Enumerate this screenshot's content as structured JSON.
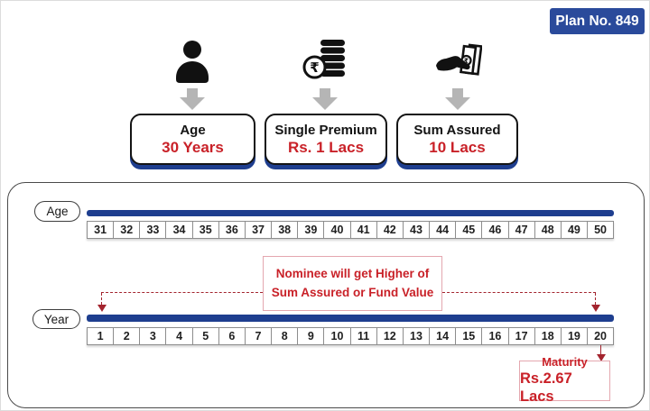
{
  "badge": {
    "label": "Plan No. 849"
  },
  "inputs": [
    {
      "icon": "person-icon",
      "title": "Age",
      "value": "30 Years"
    },
    {
      "icon": "rupee-coins-icon",
      "title": "Single Premium",
      "value": "Rs. 1 Lacs"
    },
    {
      "icon": "hand-cash-icon",
      "title": "Sum Assured",
      "value": "10 Lacs"
    }
  ],
  "timeline": {
    "age": {
      "label": "Age",
      "values": [
        "31",
        "32",
        "33",
        "34",
        "35",
        "36",
        "37",
        "38",
        "39",
        "40",
        "41",
        "42",
        "43",
        "44",
        "45",
        "46",
        "47",
        "48",
        "49",
        "50"
      ]
    },
    "year": {
      "label": "Year",
      "values": [
        "1",
        "2",
        "3",
        "4",
        "5",
        "6",
        "7",
        "8",
        "9",
        "10",
        "11",
        "12",
        "13",
        "14",
        "15",
        "16",
        "17",
        "18",
        "19",
        "20"
      ]
    },
    "nominee_note": {
      "line1": "Nominee will get Higher of",
      "line2": "Sum Assured or Fund Value"
    },
    "maturity": {
      "title": "Maturity",
      "value": "Rs.2.67 Lacs"
    }
  },
  "icons": {
    "rupee_symbol": "₹"
  },
  "colors": {
    "brand_blue": "#2a4a9b",
    "bar_blue": "#1e3e8f",
    "accent_red": "#c92128",
    "arrow_red": "#a3242e",
    "note_border_pink": "#e4a7af",
    "gray_arrow": "#b5b5b5"
  }
}
